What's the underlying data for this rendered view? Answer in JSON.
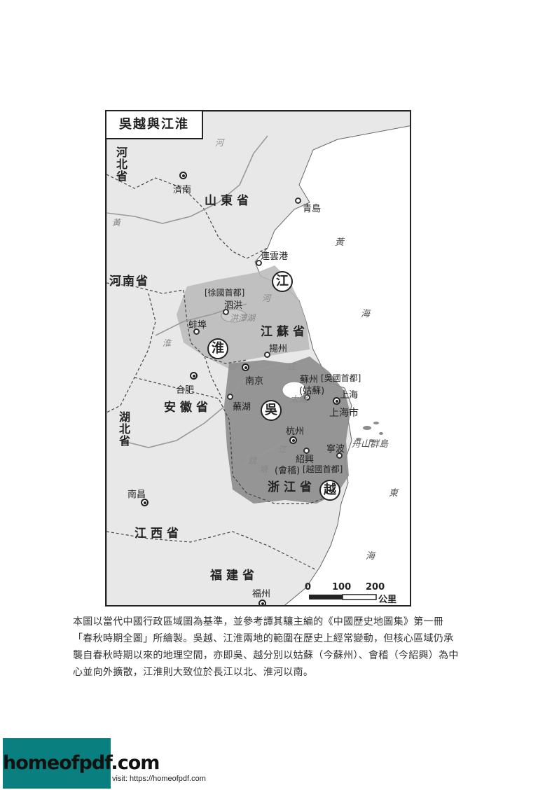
{
  "map": {
    "title": "吳越與江淮",
    "provinces": {
      "hebei": "河北省",
      "shandong": "山東省",
      "henan": "河南省",
      "jiangsu": "江蘇省",
      "anhui": "安徽省",
      "hubei": "湖北省",
      "zhejiang": "浙江省",
      "jiangxi": "江西省",
      "fujian": "福建省"
    },
    "cities": {
      "jinan": "濟南",
      "qingdao": "青島",
      "lianyungang": "連雲港",
      "sihong": "泗洪",
      "bengbu": "蚌埠",
      "yangzhou": "揚州",
      "nanjing": "南京",
      "hefei": "合肥",
      "wuhu": "蕪湖",
      "suzhou": "蘇州",
      "suzhou_old": "(姑蘇)",
      "shanghai": "上海",
      "shanghai_city": "上海市",
      "hangzhou": "杭州",
      "shaoxing": "紹興",
      "shaoxing_old": "(會稽)",
      "ningbo": "寧波",
      "nanchang": "南昌",
      "fuzhou": "福州"
    },
    "capital_notes": {
      "xu": "[徐國首都]",
      "wu": "[吳國首都]",
      "yue": "[越國首都]"
    },
    "regions": {
      "jiang": "江",
      "huai": "淮",
      "wu": "吳",
      "yue": "越"
    },
    "water": {
      "river_he": "河",
      "huang": "黃",
      "hongze": "洪澤湖",
      "huai_river": "淮",
      "jiang_1": "江",
      "jiang_2": "江",
      "taihu": "太湖",
      "he_2": "河",
      "qian": "錢",
      "tang": "塘"
    },
    "seas": {
      "huang": "黃",
      "hai_1": "海",
      "dong": "東",
      "hai_2": "海",
      "zhoushan": "舟山群島"
    },
    "scale": {
      "t0": "0",
      "t100": "100",
      "t200": "200",
      "unit": "公里"
    },
    "colors": {
      "land": "#e8e8e8",
      "sea": "#ffffff",
      "jianghuai_region": "#b8b8b8",
      "wuyue_region": "#8c8c8c"
    }
  },
  "caption": "本圖以當代中國行政區域圖為基準，並參考譚其驤主編的《中國歷史地圖集》第一冊「春秋時期全圖」所繪製。吳越、江淮兩地的範圍在歷史上經常變動，但核心區域仍承襲自春秋時期以來的地理空間，亦即吳、越分別以姑蘇（今蘇州）、會稽（今紹興）為中心並向外擴散，江淮則大致位於長江以北、淮河以南。",
  "footer": {
    "logo": "homeofpdf.com",
    "visit": "visit: https://homeofpdf.com"
  }
}
